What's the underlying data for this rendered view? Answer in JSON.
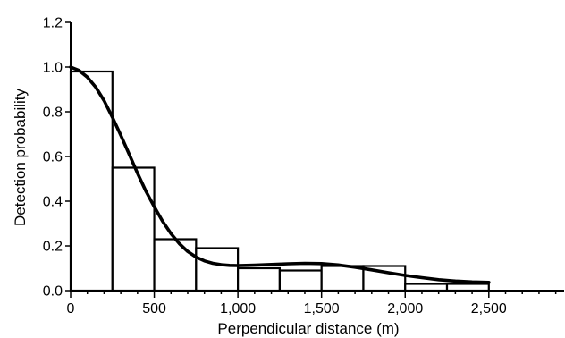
{
  "chart_data": {
    "type": "bar",
    "title": "",
    "xlabel": "Perpendicular distance (m)",
    "ylabel": "Detection probability",
    "xlim": [
      0,
      2950
    ],
    "ylim": [
      0,
      1.2
    ],
    "x_major_ticks": [
      0,
      500,
      1000,
      1500,
      2000,
      2500
    ],
    "x_tick_labels": [
      "0",
      "500",
      "1,000",
      "1,500",
      "2,000",
      "2,500"
    ],
    "x_minor_step": 100,
    "y_ticks": [
      0,
      0.2,
      0.4,
      0.6,
      0.8,
      1.0,
      1.2
    ],
    "y_tick_labels": [
      "0.0",
      "0.2",
      "0.4",
      "0.6",
      "0.8",
      "1.0",
      "1.2"
    ],
    "grid": false,
    "bin_width": 250,
    "bins": [
      {
        "x0": 0,
        "x1": 250,
        "value": 0.98
      },
      {
        "x0": 250,
        "x1": 500,
        "value": 0.55
      },
      {
        "x0": 500,
        "x1": 750,
        "value": 0.23
      },
      {
        "x0": 750,
        "x1": 1000,
        "value": 0.19
      },
      {
        "x0": 1000,
        "x1": 1250,
        "value": 0.1
      },
      {
        "x0": 1250,
        "x1": 1500,
        "value": 0.09
      },
      {
        "x0": 1500,
        "x1": 1750,
        "value": 0.11
      },
      {
        "x0": 1750,
        "x1": 2000,
        "value": 0.11
      },
      {
        "x0": 2000,
        "x1": 2250,
        "value": 0.03
      },
      {
        "x0": 2250,
        "x1": 2500,
        "value": 0.03
      }
    ],
    "fitted_curve": {
      "x": [
        0,
        50,
        100,
        150,
        200,
        250,
        300,
        350,
        400,
        450,
        500,
        550,
        600,
        650,
        700,
        750,
        800,
        850,
        900,
        950,
        1000,
        1100,
        1200,
        1300,
        1400,
        1500,
        1600,
        1700,
        1800,
        1900,
        2000,
        2100,
        2200,
        2300,
        2400,
        2500
      ],
      "y": [
        1.0,
        0.985,
        0.955,
        0.91,
        0.85,
        0.775,
        0.695,
        0.61,
        0.525,
        0.445,
        0.375,
        0.31,
        0.255,
        0.21,
        0.175,
        0.15,
        0.133,
        0.122,
        0.116,
        0.113,
        0.112,
        0.114,
        0.117,
        0.12,
        0.122,
        0.121,
        0.115,
        0.105,
        0.093,
        0.08,
        0.068,
        0.058,
        0.049,
        0.043,
        0.039,
        0.037
      ]
    }
  }
}
